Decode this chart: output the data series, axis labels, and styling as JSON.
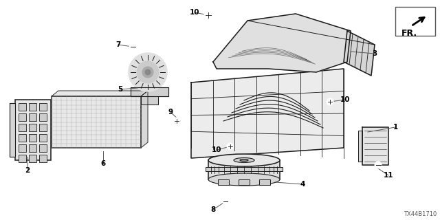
{
  "background_color": "#ffffff",
  "diagram_code": "TX44B1710",
  "fr_label": "FR.",
  "line_color": "#1a1a1a",
  "light_fill": "#f0f0f0",
  "mid_fill": "#d8d8d8",
  "dark_fill": "#aaaaaa"
}
